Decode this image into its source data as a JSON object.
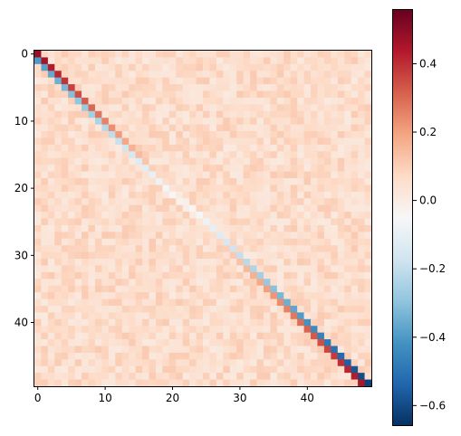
{
  "chart_data": {
    "type": "heatmap",
    "title": "",
    "xlabel": "",
    "ylabel": "",
    "rows": 50,
    "cols": 50,
    "x_ticks": [
      "0",
      "10",
      "20",
      "30",
      "40"
    ],
    "y_ticks": [
      "0",
      "10",
      "20",
      "30",
      "40"
    ],
    "colormap": "RdBu_r",
    "color_range": [
      -0.66,
      0.56
    ],
    "colorbar_ticks": [
      "0.4",
      "0.2",
      "0.0",
      "−0.2",
      "−0.4",
      "−0.6"
    ],
    "colorbar_tick_values": [
      0.4,
      0.2,
      0.0,
      -0.2,
      -0.4,
      -0.6
    ],
    "pattern": {
      "diagonal_value_start": 0.48,
      "diagonal_value_end": -0.62,
      "sub_diagonal_value_start": -0.4,
      "sub_diagonal_value_end": 0.45,
      "off_diagonal_mean": 0.06,
      "off_diagonal_spread": 0.05
    },
    "grid": false,
    "legend": "colorbar-right"
  }
}
